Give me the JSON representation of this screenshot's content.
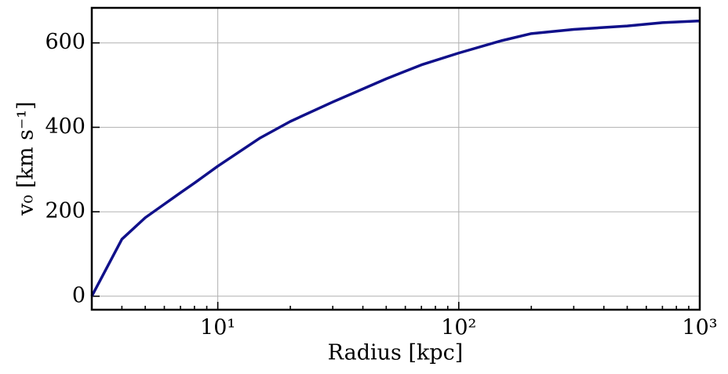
{
  "chart_data": {
    "type": "line",
    "xlabel": "Radius [kpc]",
    "ylabel": "v₀  [km s⁻¹]",
    "x": [
      3,
      4,
      5,
      6,
      7,
      8,
      10,
      15,
      20,
      30,
      50,
      70,
      100,
      150,
      200,
      300,
      500,
      700,
      1000
    ],
    "values": [
      0,
      135,
      186,
      218,
      245,
      268,
      308,
      375,
      414,
      460,
      515,
      548,
      576,
      605,
      622,
      632,
      640,
      648,
      652
    ],
    "color": "#10108a",
    "xscale": "log",
    "xlim": [
      3,
      1000
    ],
    "ylim": [
      -32,
      683
    ],
    "xticks": [
      {
        "value": 10,
        "label": "10¹"
      },
      {
        "value": 100,
        "label": "10²"
      },
      {
        "value": 1000,
        "label": "10³"
      }
    ],
    "xminorticks": [
      4,
      5,
      6,
      7,
      8,
      9,
      20,
      30,
      40,
      50,
      60,
      70,
      80,
      90,
      200,
      300,
      400,
      500,
      600,
      700,
      800,
      900
    ],
    "yticks": [
      0,
      200,
      400,
      600
    ],
    "grid": true
  }
}
